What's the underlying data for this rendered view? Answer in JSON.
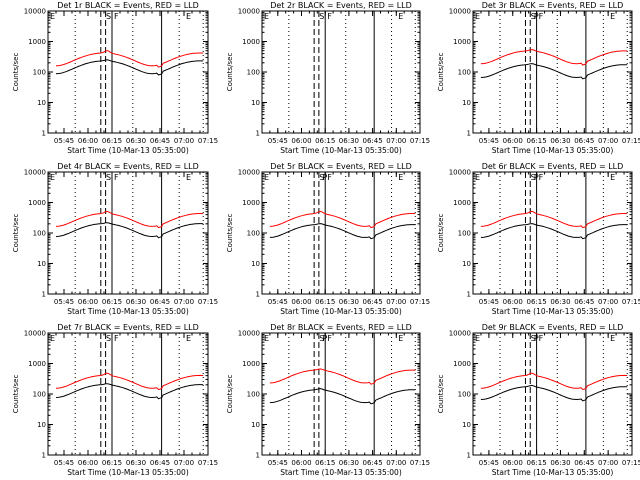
{
  "chart_data": [
    {
      "type": "line",
      "title": "Det 1r BLACK = Events, RED = LLD",
      "top_markers": [
        "E",
        "S",
        "F",
        "E"
      ],
      "series": [
        {
          "name": "Events",
          "color": "#000000",
          "base": 160,
          "bumps": [
            [
              8,
              100,
              0.2
            ]
          ]
        },
        {
          "name": "LLD",
          "color": "#ff0000",
          "base": 290,
          "bumps": [
            [
              4.5,
              420,
              0.15
            ]
          ]
        }
      ]
    },
    {
      "type": "line",
      "title": "Det 2r BLACK = Events, RED = LLD",
      "top_markers": [
        "E",
        "S",
        "F",
        "E"
      ],
      "series": []
    },
    {
      "type": "line",
      "title": "Det 3r BLACK = Events, RED = LLD",
      "top_markers": [
        "E",
        "S",
        "P",
        "F",
        "E"
      ],
      "series": [
        {
          "name": "Events",
          "color": "#000000",
          "base": 120,
          "bumps": [
            [
              5,
              80,
              0.25
            ]
          ]
        },
        {
          "name": "LLD",
          "color": "#ff0000",
          "base": 340,
          "bumps": [
            [
              3,
              270,
              0.1
            ]
          ]
        }
      ]
    },
    {
      "type": "line",
      "title": "Det 4r BLACK = Events, RED = LLD",
      "top_markers": [
        "E",
        "S",
        "F",
        "E"
      ],
      "series": [
        {
          "name": "Events",
          "color": "#000000",
          "base": 140,
          "bumps": [
            [
              8,
              80,
              0.2
            ]
          ]
        },
        {
          "name": "LLD",
          "color": "#ff0000",
          "base": 300,
          "bumps": [
            [
              3.5,
              400,
              0.15
            ]
          ]
        }
      ]
    },
    {
      "type": "line",
      "title": "Det 5r BLACK = Events, RED = LLD",
      "top_markers": [
        "E",
        "S",
        "P",
        "F",
        "E"
      ],
      "series": [
        {
          "name": "Events",
          "color": "#000000",
          "base": 130,
          "bumps": [
            [
              9,
              80,
              0.2
            ]
          ]
        },
        {
          "name": "LLD",
          "color": "#ff0000",
          "base": 300,
          "bumps": [
            [
              4,
              400,
              0.15
            ]
          ]
        }
      ]
    },
    {
      "type": "line",
      "title": "Det 6r BLACK = Events, RED = LLD",
      "top_markers": [
        "E",
        "S",
        "P",
        "F",
        "E"
      ],
      "series": [
        {
          "name": "Events",
          "color": "#000000",
          "base": 130,
          "bumps": [
            [
              8,
              80,
              0.2
            ]
          ]
        },
        {
          "name": "LLD",
          "color": "#ff0000",
          "base": 300,
          "bumps": [
            [
              3.5,
              400,
              0.15
            ]
          ]
        }
      ]
    },
    {
      "type": "line",
      "title": "Det 7r BLACK = Events, RED = LLD",
      "top_markers": [
        "E",
        "S",
        "F",
        "E"
      ],
      "series": [
        {
          "name": "Events",
          "color": "#000000",
          "base": 140,
          "bumps": [
            [
              8,
              80,
              0.2
            ]
          ]
        },
        {
          "name": "LLD",
          "color": "#ff0000",
          "base": 280,
          "bumps": [
            [
              3.5,
              400,
              0.15
            ]
          ]
        }
      ]
    },
    {
      "type": "line",
      "title": "Det 8r BLACK = Events, RED = LLD",
      "top_markers": [
        "E",
        "S",
        "P",
        "F",
        "E"
      ],
      "series": [
        {
          "name": "Events",
          "color": "#000000",
          "base": 95,
          "bumps": [
            [
              6,
              65,
              0.2
            ]
          ]
        },
        {
          "name": "LLD",
          "color": "#ff0000",
          "base": 420,
          "bumps": [
            [
              3,
              300,
              0.12
            ]
          ]
        }
      ]
    },
    {
      "type": "line",
      "title": "Det 9r BLACK = Events, RED = LLD",
      "top_markers": [
        "E",
        "S",
        "P",
        "F",
        "E"
      ],
      "series": [
        {
          "name": "Events",
          "color": "#000000",
          "base": 120,
          "bumps": [
            [
              5.5,
              90,
              0.25
            ]
          ]
        },
        {
          "name": "LLD",
          "color": "#ff0000",
          "base": 280,
          "bumps": [
            [
              4,
              400,
              0.2
            ]
          ]
        }
      ]
    }
  ],
  "shared": {
    "x_ticks": [
      "05:45",
      "06:00",
      "06:15",
      "06:30",
      "06:45",
      "07:00",
      "07:15"
    ],
    "y_ticks": [
      "1",
      "10",
      "100",
      "1000",
      "10000"
    ],
    "ylim": [
      1,
      10000
    ],
    "y_scale": "log",
    "xlabel": "Start Time (10-Mar-13 05:35:00)",
    "ylabel": "Counts/sec"
  }
}
